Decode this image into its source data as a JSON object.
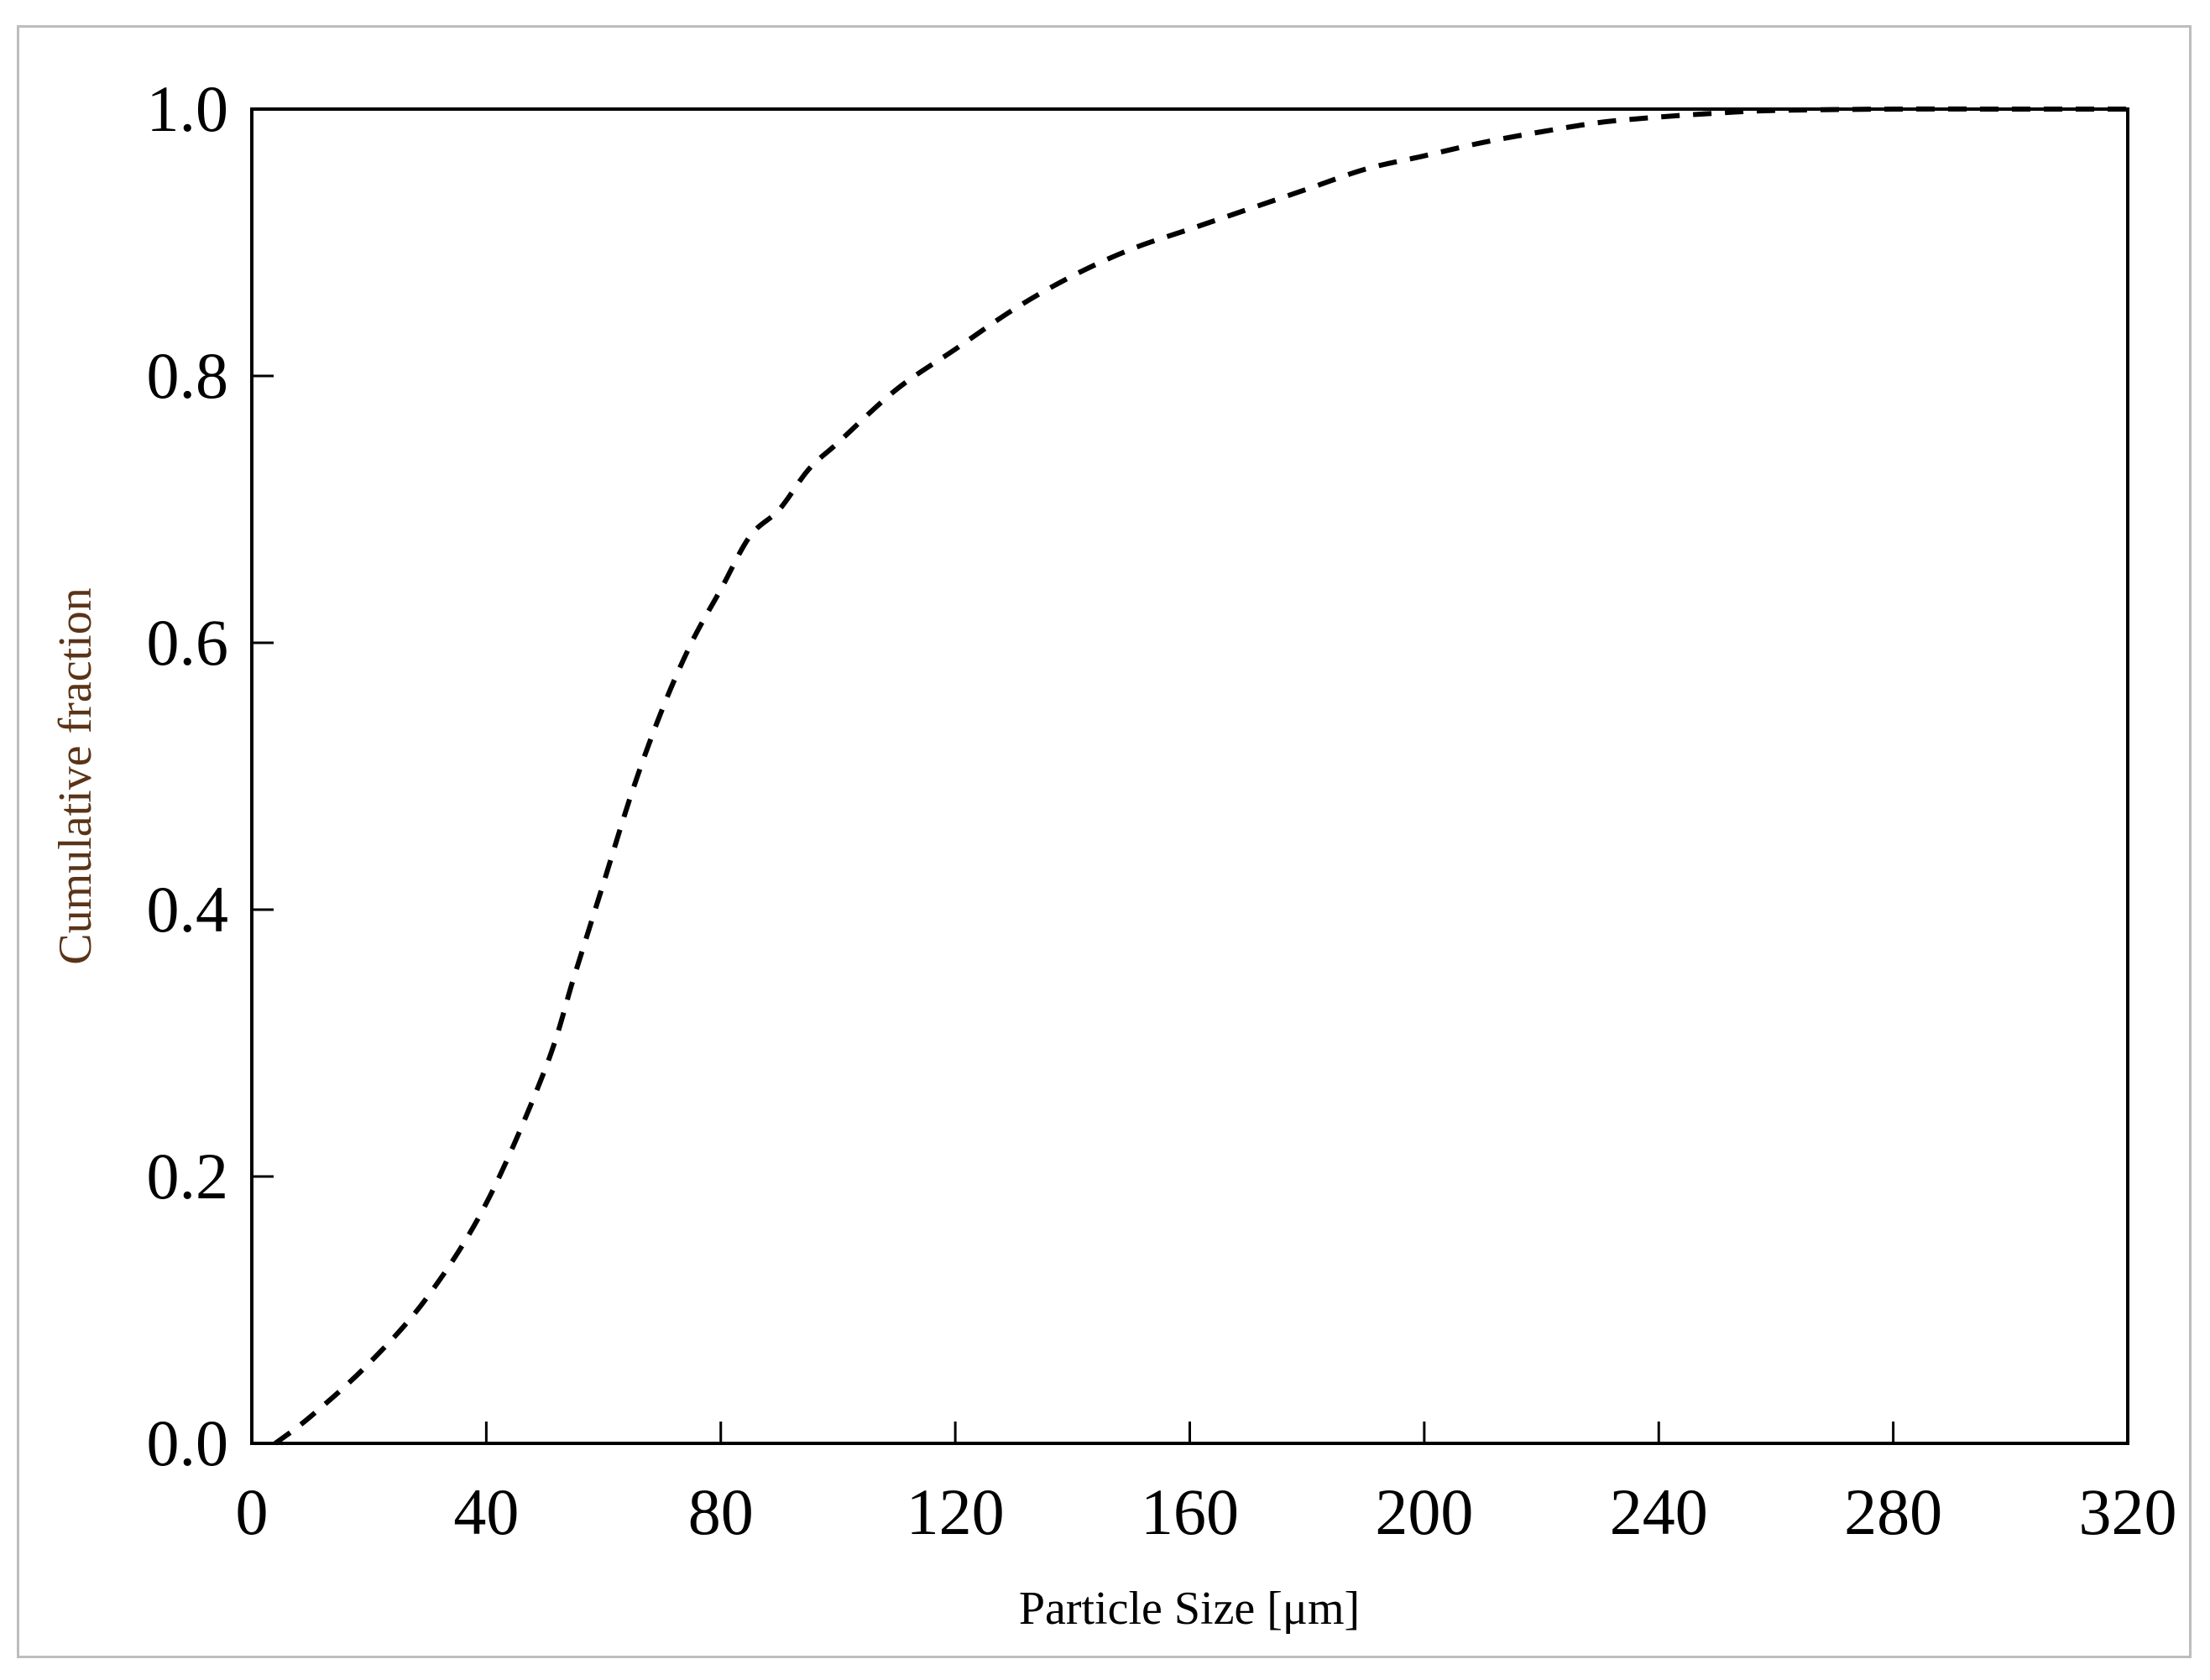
{
  "chart_data": {
    "type": "line",
    "xlabel": "Particle Size [μm]",
    "ylabel": "Cumulative fraction",
    "xlim": [
      0,
      320
    ],
    "ylim": [
      0.0,
      1.0
    ],
    "xticks": [
      "0",
      "40",
      "80",
      "120",
      "160",
      "200",
      "240",
      "280",
      "320"
    ],
    "yticks": [
      "0.0",
      "0.2",
      "0.4",
      "0.6",
      "0.8",
      "1.0"
    ],
    "grid": false,
    "legend": "none",
    "colors": {
      "line": "#000000",
      "axis": "#000000",
      "ylabel": "#5a3418",
      "frame": "#bdbdbd"
    },
    "series": [
      {
        "line_style": "dashed",
        "x": [
          4,
          10,
          20,
          30,
          40,
          50,
          55,
          60,
          65,
          70,
          75,
          80,
          85,
          90,
          95,
          100,
          110,
          120,
          130,
          140,
          150,
          160,
          170,
          180,
          190,
          200,
          210,
          220,
          230,
          240,
          250,
          260,
          280,
          300,
          320
        ],
        "y": [
          0.0,
          0.02,
          0.06,
          0.11,
          0.18,
          0.28,
          0.35,
          0.42,
          0.49,
          0.55,
          0.6,
          0.64,
          0.68,
          0.7,
          0.73,
          0.75,
          0.79,
          0.82,
          0.85,
          0.875,
          0.895,
          0.91,
          0.925,
          0.94,
          0.955,
          0.965,
          0.975,
          0.983,
          0.99,
          0.994,
          0.997,
          0.999,
          1.0,
          1.0,
          1.0
        ]
      }
    ]
  }
}
